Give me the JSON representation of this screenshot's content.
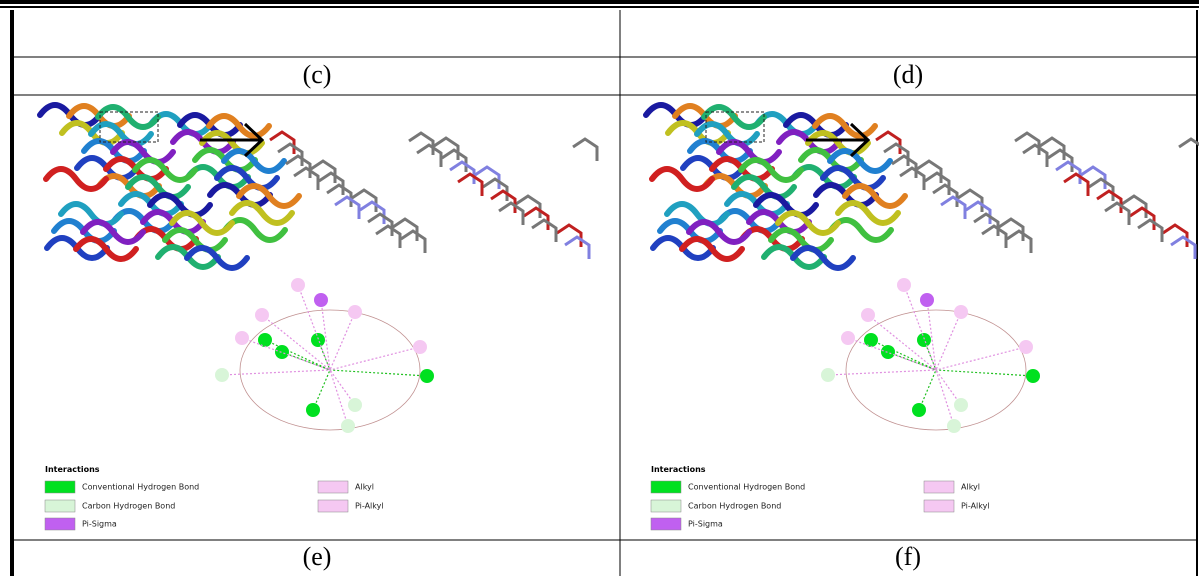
{
  "labels": [
    "(c)",
    "(d)",
    "(e)",
    "(f)"
  ],
  "panels": [
    {
      "legend": {
        "title": "Interactions",
        "items": [
          "Conventional Hydrogen Bond",
          "Carbon Hydrogen Bond",
          "Pi-Sigma",
          "Alkyl",
          "Pi-Alkyl"
        ]
      }
    },
    {
      "legend": {
        "title": "Interactions",
        "items": [
          "Conventional Hydrogen Bond",
          "Carbon Hydrogen Bond",
          "Pi-Sigma",
          "Alkyl",
          "Pi-Alkyl"
        ]
      }
    }
  ]
}
